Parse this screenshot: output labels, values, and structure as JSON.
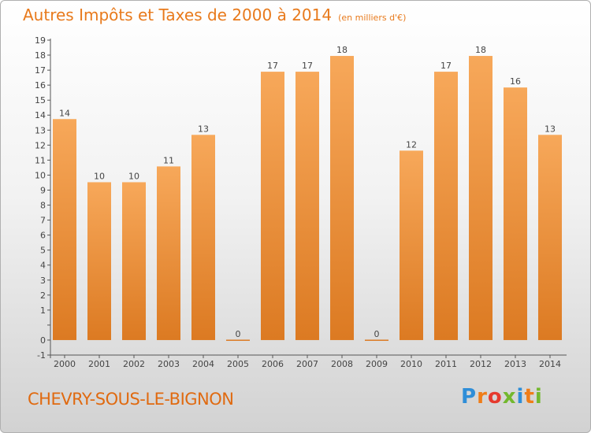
{
  "page": {
    "title": "Autres Impôts et Taxes de 2000 à 2014",
    "unit_note": "(en milliers d'€)",
    "commune": "CHEVRY-SOUS-LE-BIGNON",
    "logo": "Proxiti"
  },
  "colors": {
    "bar_top": "#f7a85a",
    "bar_bottom": "#dc7a22",
    "title": "#e87a1c",
    "axis": "#555555",
    "text": "#444444"
  },
  "chart_data": {
    "type": "bar",
    "title": "Autres Impôts et Taxes de 2000 à 2014",
    "subtitle": "(en milliers d'€)",
    "xlabel": "",
    "ylabel": "",
    "categories": [
      "2000",
      "2001",
      "2002",
      "2003",
      "2004",
      "2005",
      "2006",
      "2007",
      "2008",
      "2009",
      "2010",
      "2011",
      "2012",
      "2013",
      "2014"
    ],
    "values": [
      14,
      10,
      10,
      11,
      13,
      0,
      17,
      17,
      18,
      0,
      12,
      17,
      18,
      16,
      13
    ],
    "data_labels": [
      "14",
      "10",
      "10",
      "11",
      "13",
      "0",
      "17",
      "17",
      "18",
      "0",
      "12",
      "17",
      "18",
      "16",
      "13"
    ],
    "ylim": [
      -1,
      19
    ],
    "y_ticks": [
      "-1",
      "0",
      "",
      "1",
      "2",
      "3",
      "4",
      "5",
      "6",
      "7",
      "8",
      "9",
      "10",
      "11",
      "12",
      "13",
      "14",
      "15",
      "16",
      "17",
      "18",
      "19"
    ],
    "grid": false,
    "legend": "none"
  }
}
